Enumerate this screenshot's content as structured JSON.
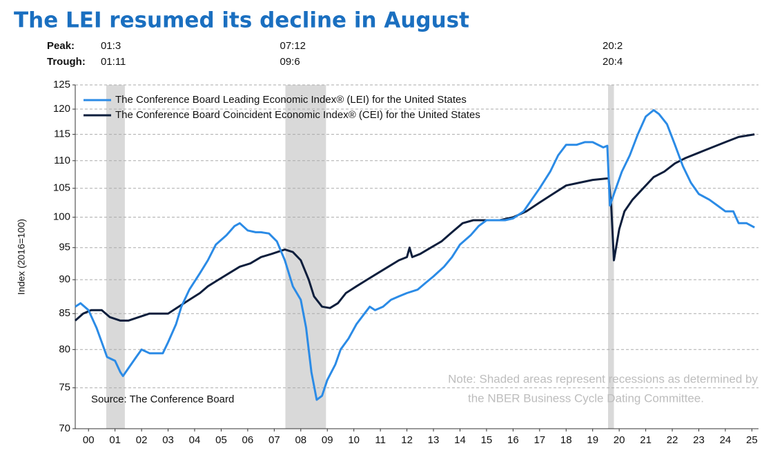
{
  "chart_data": {
    "type": "line",
    "title": "The LEI resumed its decline in August",
    "y_label": "Index (2016=100)",
    "peak_label": "Peak:",
    "trough_label": "Trough:",
    "recessions": [
      {
        "peak": "01:3",
        "trough": "01:11",
        "start": 2001.17,
        "end": 2001.87
      },
      {
        "peak": "07:12",
        "trough": "09:6",
        "start": 2007.92,
        "end": 2009.45
      },
      {
        "peak": "20:2",
        "trough": "20:4",
        "start": 2020.08,
        "end": 2020.3
      }
    ],
    "recession_color": "#d9d9d9",
    "source": "Source: The Conference Board",
    "note": [
      "Note: Shaded areas represent recessions as determined by",
      "the NBER Business Cycle Dating Committee."
    ],
    "log_scale": true,
    "grid": true,
    "ylim": [
      70,
      125
    ],
    "yticks": [
      70,
      75,
      80,
      85,
      90,
      95,
      100,
      105,
      110,
      115,
      120,
      125
    ],
    "xlim": [
      2000,
      2025.75
    ],
    "xticks": [
      {
        "value": 2000.5,
        "label": "00"
      },
      {
        "value": 2001.5,
        "label": "01"
      },
      {
        "value": 2002.5,
        "label": "02"
      },
      {
        "value": 2003.5,
        "label": "03"
      },
      {
        "value": 2004.5,
        "label": "04"
      },
      {
        "value": 2005.5,
        "label": "05"
      },
      {
        "value": 2006.5,
        "label": "06"
      },
      {
        "value": 2007.5,
        "label": "07"
      },
      {
        "value": 2008.5,
        "label": "08"
      },
      {
        "value": 2009.5,
        "label": "09"
      },
      {
        "value": 2010.5,
        "label": "10"
      },
      {
        "value": 2011.5,
        "label": "11"
      },
      {
        "value": 2012.5,
        "label": "12"
      },
      {
        "value": 2013.5,
        "label": "13"
      },
      {
        "value": 2014.5,
        "label": "14"
      },
      {
        "value": 2015.5,
        "label": "15"
      },
      {
        "value": 2016.5,
        "label": "16"
      },
      {
        "value": 2017.5,
        "label": "17"
      },
      {
        "value": 2018.5,
        "label": "18"
      },
      {
        "value": 2019.5,
        "label": "19"
      },
      {
        "value": 2020.5,
        "label": "20"
      },
      {
        "value": 2021.5,
        "label": "21"
      },
      {
        "value": 2022.5,
        "label": "22"
      },
      {
        "value": 2023.5,
        "label": "23"
      },
      {
        "value": 2024.5,
        "label": "24"
      },
      {
        "value": 2025.5,
        "label": "25"
      }
    ],
    "series": [
      {
        "name": "The Conference Board Leading Economic Index® (LEI) for the United States",
        "color": "#2b8be6",
        "x": [
          2000.0,
          2000.2,
          2000.5,
          2000.8,
          2001.0,
          2001.2,
          2001.5,
          2001.7,
          2001.8,
          2002.0,
          2002.3,
          2002.5,
          2002.8,
          2003.0,
          2003.3,
          2003.5,
          2003.8,
          2004.0,
          2004.3,
          2004.7,
          2005.0,
          2005.3,
          2005.7,
          2006.0,
          2006.2,
          2006.5,
          2006.8,
          2007.0,
          2007.3,
          2007.6,
          2007.9,
          2008.2,
          2008.5,
          2008.7,
          2008.9,
          2009.1,
          2009.3,
          2009.5,
          2009.8,
          2010.0,
          2010.3,
          2010.6,
          2010.9,
          2011.1,
          2011.3,
          2011.6,
          2011.9,
          2012.2,
          2012.5,
          2012.9,
          2013.2,
          2013.5,
          2013.9,
          2014.2,
          2014.5,
          2014.9,
          2015.2,
          2015.5,
          2015.9,
          2016.2,
          2016.5,
          2016.9,
          2017.2,
          2017.5,
          2017.9,
          2018.2,
          2018.5,
          2018.9,
          2019.2,
          2019.5,
          2019.9,
          2020.05,
          2020.15,
          2020.3,
          2020.6,
          2020.9,
          2021.2,
          2021.5,
          2021.8,
          2022.0,
          2022.3,
          2022.6,
          2022.9,
          2023.2,
          2023.5,
          2023.9,
          2024.2,
          2024.5,
          2024.8,
          2024.9,
          2025.0,
          2025.3,
          2025.6
        ],
        "values": [
          86,
          86.5,
          85.5,
          83,
          81,
          79,
          78.5,
          77,
          76.5,
          77.5,
          79,
          80,
          79.5,
          79.5,
          79.5,
          81,
          83.5,
          86,
          88.5,
          91,
          93,
          95.5,
          97,
          98.5,
          99,
          97.8,
          97.5,
          97.5,
          97.3,
          96,
          93,
          89,
          87,
          83,
          77,
          73.5,
          74,
          76,
          78,
          80,
          81.5,
          83.5,
          85,
          86,
          85.5,
          86,
          87,
          87.5,
          88,
          88.5,
          89.5,
          90.5,
          92,
          93.5,
          95.5,
          97,
          98.5,
          99.5,
          99.5,
          99.5,
          99.8,
          101,
          103,
          105,
          108,
          111,
          113,
          113,
          113.5,
          113.5,
          112.5,
          112.8,
          102,
          104,
          108,
          111,
          115,
          118.5,
          119.8,
          119,
          117,
          113,
          109,
          106,
          104,
          103,
          102,
          101,
          101,
          100,
          99,
          99,
          98.3
        ]
      },
      {
        "name": "The Conference Board Coincident Economic Index® (CEI) for the United States",
        "color": "#0d1e3c",
        "x": [
          2000.0,
          2000.3,
          2000.6,
          2001.0,
          2001.3,
          2001.7,
          2002.0,
          2002.4,
          2002.8,
          2003.2,
          2003.5,
          2003.9,
          2004.3,
          2004.7,
          2005.0,
          2005.4,
          2005.8,
          2006.2,
          2006.6,
          2007.0,
          2007.4,
          2007.9,
          2008.2,
          2008.5,
          2008.8,
          2009.0,
          2009.3,
          2009.6,
          2009.9,
          2010.2,
          2010.6,
          2011.0,
          2011.4,
          2011.8,
          2012.2,
          2012.5,
          2012.6,
          2012.7,
          2013.0,
          2013.4,
          2013.8,
          2014.2,
          2014.6,
          2015.0,
          2015.5,
          2016.0,
          2016.5,
          2017.0,
          2017.5,
          2018.0,
          2018.5,
          2019.0,
          2019.5,
          2020.1,
          2020.2,
          2020.3,
          2020.5,
          2020.7,
          2021.0,
          2021.4,
          2021.8,
          2022.2,
          2022.6,
          2023.0,
          2023.5,
          2024.0,
          2024.5,
          2025.0,
          2025.6
        ],
        "values": [
          84,
          85,
          85.5,
          85.5,
          84.5,
          84,
          84,
          84.5,
          85,
          85,
          85,
          86,
          87,
          88,
          89,
          90,
          91,
          92,
          92.5,
          93.5,
          94,
          94.7,
          94.3,
          93,
          90,
          87.5,
          86,
          85.8,
          86.5,
          88,
          89,
          90,
          91,
          92,
          93,
          93.5,
          95,
          93.5,
          94,
          95,
          96,
          97.5,
          99,
          99.5,
          99.5,
          99.5,
          100,
          101,
          102.5,
          104,
          105.5,
          106,
          106.5,
          106.8,
          102,
          93,
          98,
          101,
          103,
          105,
          107,
          108,
          109.5,
          110.5,
          111.5,
          112.5,
          113.5,
          114.5,
          115
        ]
      }
    ]
  }
}
